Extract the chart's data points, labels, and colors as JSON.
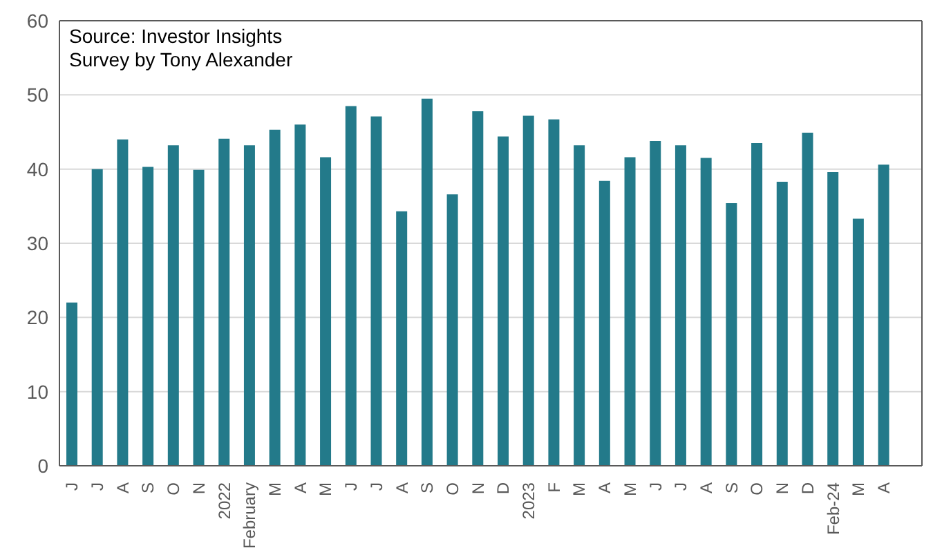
{
  "chart_data": {
    "type": "bar",
    "annotations": [
      "Source: Investor Insights Survey by Tony Alexander"
    ],
    "categories": [
      "J",
      "J",
      "A",
      "S",
      "O",
      "N",
      "2022",
      "February",
      "M",
      "A",
      "M",
      "J",
      "J",
      "A",
      "S",
      "O",
      "N",
      "D",
      "2023",
      "F",
      "M",
      "A",
      "M",
      "J",
      "J",
      "A",
      "S",
      "O",
      "N",
      "D",
      "Feb-24",
      "M",
      "A",
      null
    ],
    "values": [
      22,
      40,
      44,
      40.3,
      43.2,
      39.9,
      44.1,
      43.2,
      45.3,
      46,
      41.6,
      48.5,
      47.1,
      34.3,
      49.5,
      36.6,
      47.8,
      44.4,
      47.2,
      46.7,
      43.2,
      38.4,
      41.6,
      43.8,
      43.2,
      41.5,
      35.4,
      43.5,
      38.3,
      44.9,
      39.6,
      33.3,
      40.6,
      null
    ],
    "color": "#237a8a",
    "ylim": [
      0,
      60
    ],
    "yticks": [
      0,
      10,
      20,
      30,
      40,
      50,
      60
    ],
    "grid": "y"
  }
}
